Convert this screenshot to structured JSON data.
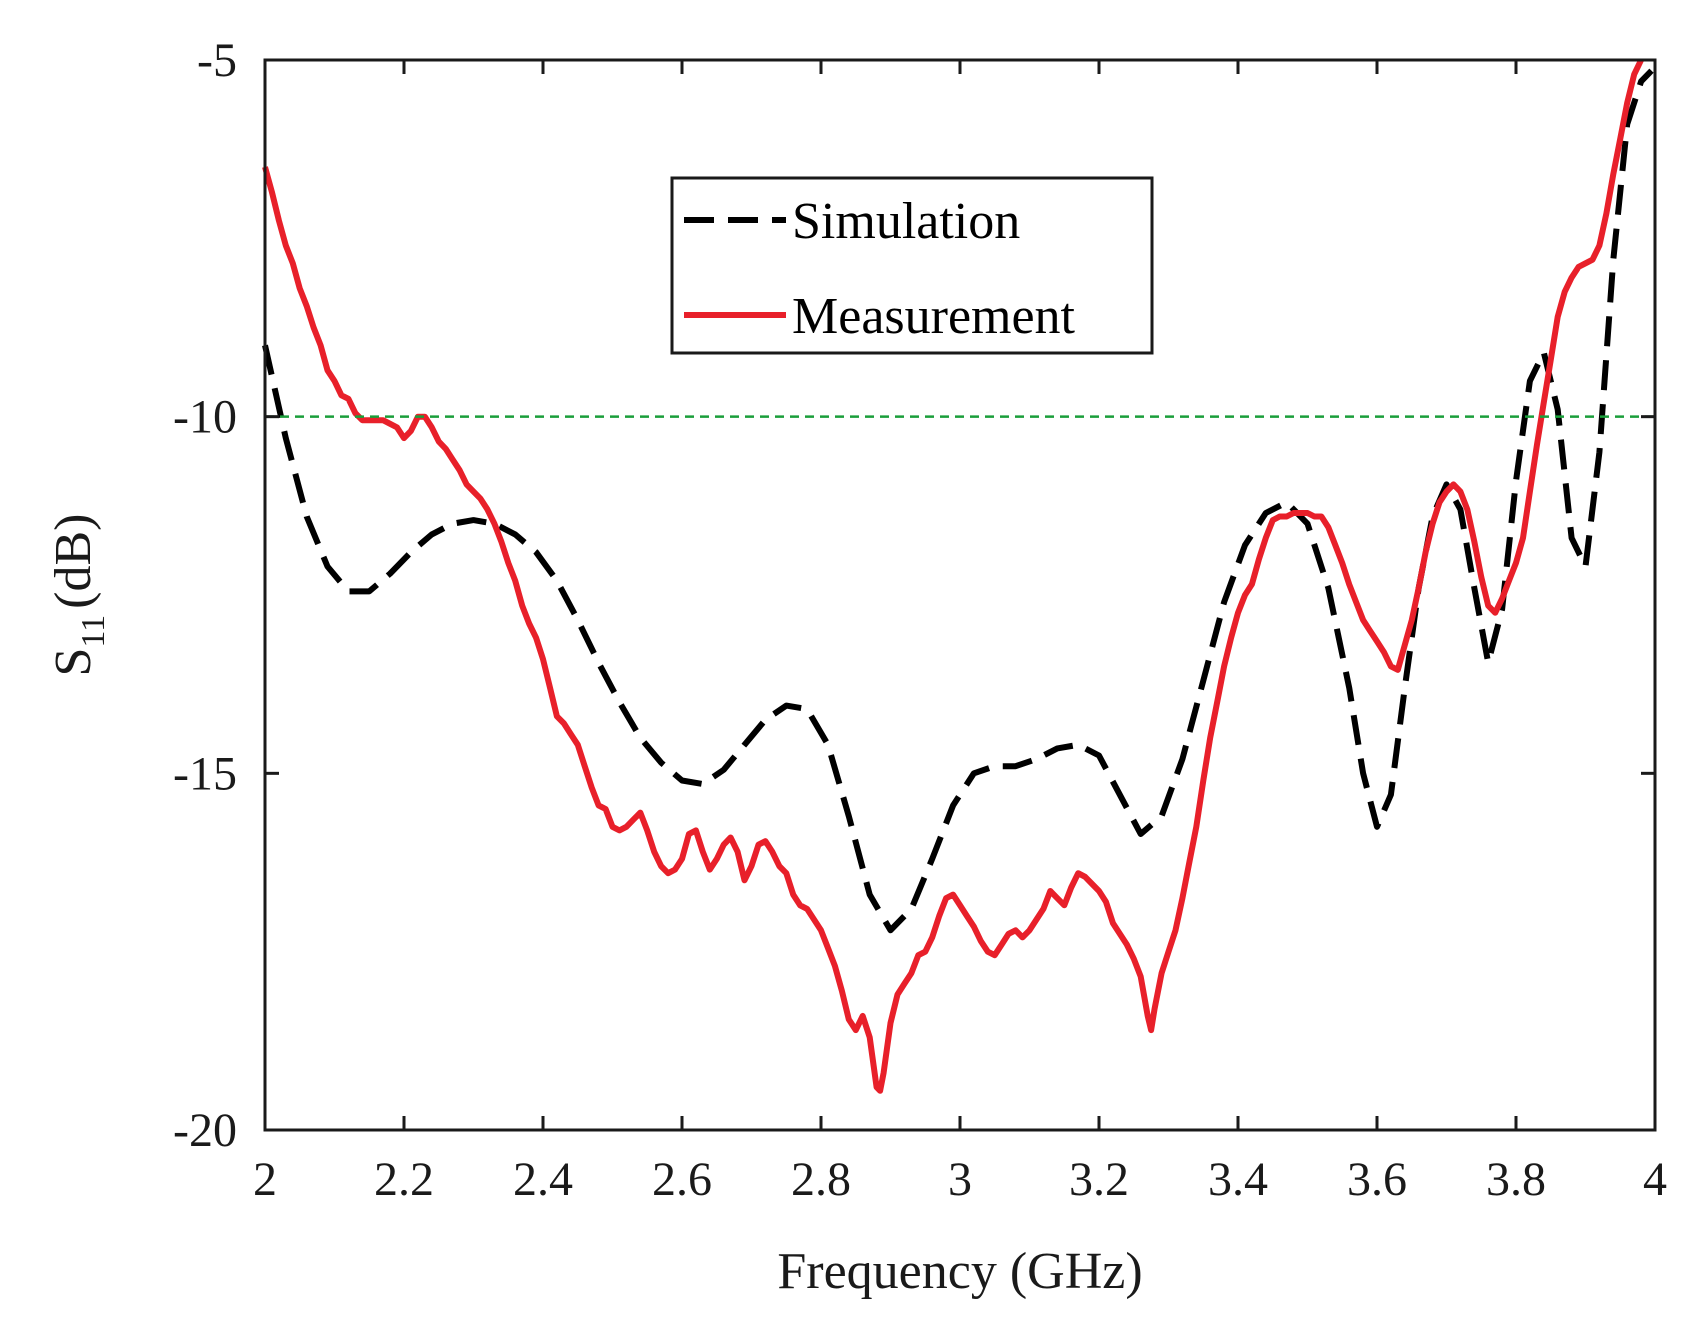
{
  "chart_data": {
    "type": "line",
    "title": "",
    "xlabel": "Frequency (GHz)",
    "ylabel": "S11 (dB)",
    "ylabel_main": "S",
    "ylabel_sub": "11",
    "ylabel_unit": "(dB)",
    "xlim": [
      2,
      4
    ],
    "ylim": [
      -20,
      -5
    ],
    "x_ticks": [
      2,
      2.2,
      2.4,
      2.6,
      2.8,
      3,
      3.2,
      3.4,
      3.6,
      3.8,
      4
    ],
    "x_tick_labels": [
      "2",
      "2.2",
      "2.4",
      "2.6",
      "2.8",
      "3",
      "3.2",
      "3.4",
      "3.6",
      "3.8",
      "4"
    ],
    "y_ticks": [
      -5,
      -10,
      -15,
      -20
    ],
    "y_tick_labels": [
      "-5",
      "-10",
      "-15",
      "-20"
    ],
    "grid": false,
    "legend_position": "top-center",
    "reference_line": {
      "y": -10,
      "color": "#1a9e3a",
      "style": "dashed"
    },
    "series": [
      {
        "name": "Simulation",
        "color": "#000000",
        "style": "dashed",
        "points": [
          [
            2.0,
            -9.0
          ],
          [
            2.03,
            -10.3
          ],
          [
            2.06,
            -11.4
          ],
          [
            2.09,
            -12.1
          ],
          [
            2.12,
            -12.45
          ],
          [
            2.15,
            -12.45
          ],
          [
            2.18,
            -12.2
          ],
          [
            2.21,
            -11.9
          ],
          [
            2.24,
            -11.65
          ],
          [
            2.27,
            -11.5
          ],
          [
            2.3,
            -11.45
          ],
          [
            2.33,
            -11.5
          ],
          [
            2.36,
            -11.65
          ],
          [
            2.39,
            -11.9
          ],
          [
            2.42,
            -12.3
          ],
          [
            2.45,
            -12.85
          ],
          [
            2.48,
            -13.45
          ],
          [
            2.51,
            -14.0
          ],
          [
            2.54,
            -14.5
          ],
          [
            2.57,
            -14.85
          ],
          [
            2.6,
            -15.1
          ],
          [
            2.63,
            -15.15
          ],
          [
            2.66,
            -14.95
          ],
          [
            2.69,
            -14.6
          ],
          [
            2.72,
            -14.25
          ],
          [
            2.75,
            -14.05
          ],
          [
            2.78,
            -14.1
          ],
          [
            2.81,
            -14.6
          ],
          [
            2.84,
            -15.6
          ],
          [
            2.87,
            -16.7
          ],
          [
            2.9,
            -17.2
          ],
          [
            2.93,
            -16.9
          ],
          [
            2.96,
            -16.2
          ],
          [
            2.99,
            -15.45
          ],
          [
            3.02,
            -15.0
          ],
          [
            3.05,
            -14.9
          ],
          [
            3.08,
            -14.9
          ],
          [
            3.11,
            -14.8
          ],
          [
            3.14,
            -14.65
          ],
          [
            3.17,
            -14.6
          ],
          [
            3.2,
            -14.75
          ],
          [
            3.23,
            -15.3
          ],
          [
            3.26,
            -15.85
          ],
          [
            3.29,
            -15.6
          ],
          [
            3.32,
            -14.8
          ],
          [
            3.35,
            -13.7
          ],
          [
            3.38,
            -12.6
          ],
          [
            3.41,
            -11.8
          ],
          [
            3.44,
            -11.35
          ],
          [
            3.47,
            -11.2
          ],
          [
            3.5,
            -11.5
          ],
          [
            3.53,
            -12.4
          ],
          [
            3.56,
            -13.8
          ],
          [
            3.58,
            -15.0
          ],
          [
            3.6,
            -15.75
          ],
          [
            3.62,
            -15.3
          ],
          [
            3.64,
            -13.8
          ],
          [
            3.66,
            -12.4
          ],
          [
            3.68,
            -11.4
          ],
          [
            3.7,
            -10.95
          ],
          [
            3.72,
            -11.3
          ],
          [
            3.74,
            -12.4
          ],
          [
            3.76,
            -13.45
          ],
          [
            3.78,
            -12.7
          ],
          [
            3.8,
            -10.9
          ],
          [
            3.82,
            -9.5
          ],
          [
            3.84,
            -9.1
          ],
          [
            3.86,
            -9.9
          ],
          [
            3.88,
            -11.7
          ],
          [
            3.9,
            -12.1
          ],
          [
            3.92,
            -10.5
          ],
          [
            3.94,
            -7.8
          ],
          [
            3.96,
            -5.9
          ],
          [
            3.98,
            -5.3
          ],
          [
            3.995,
            -5.15
          ]
        ]
      },
      {
        "name": "Measurement",
        "color": "#e8202a",
        "style": "solid",
        "points": [
          [
            2.0,
            -6.5
          ],
          [
            2.01,
            -6.85
          ],
          [
            2.02,
            -7.25
          ],
          [
            2.03,
            -7.6
          ],
          [
            2.04,
            -7.85
          ],
          [
            2.05,
            -8.2
          ],
          [
            2.06,
            -8.45
          ],
          [
            2.07,
            -8.75
          ],
          [
            2.08,
            -9.0
          ],
          [
            2.09,
            -9.35
          ],
          [
            2.1,
            -9.5
          ],
          [
            2.11,
            -9.7
          ],
          [
            2.12,
            -9.75
          ],
          [
            2.13,
            -9.95
          ],
          [
            2.14,
            -10.05
          ],
          [
            2.15,
            -10.05
          ],
          [
            2.16,
            -10.05
          ],
          [
            2.17,
            -10.05
          ],
          [
            2.18,
            -10.1
          ],
          [
            2.19,
            -10.15
          ],
          [
            2.2,
            -10.3
          ],
          [
            2.21,
            -10.2
          ],
          [
            2.22,
            -10.0
          ],
          [
            2.23,
            -10.0
          ],
          [
            2.24,
            -10.15
          ],
          [
            2.25,
            -10.35
          ],
          [
            2.26,
            -10.45
          ],
          [
            2.27,
            -10.6
          ],
          [
            2.28,
            -10.75
          ],
          [
            2.29,
            -10.95
          ],
          [
            2.3,
            -11.05
          ],
          [
            2.31,
            -11.15
          ],
          [
            2.32,
            -11.3
          ],
          [
            2.33,
            -11.5
          ],
          [
            2.34,
            -11.75
          ],
          [
            2.35,
            -12.05
          ],
          [
            2.36,
            -12.3
          ],
          [
            2.37,
            -12.65
          ],
          [
            2.38,
            -12.9
          ],
          [
            2.39,
            -13.1
          ],
          [
            2.4,
            -13.4
          ],
          [
            2.41,
            -13.8
          ],
          [
            2.42,
            -14.2
          ],
          [
            2.43,
            -14.3
          ],
          [
            2.44,
            -14.45
          ],
          [
            2.45,
            -14.6
          ],
          [
            2.46,
            -14.9
          ],
          [
            2.47,
            -15.2
          ],
          [
            2.48,
            -15.45
          ],
          [
            2.49,
            -15.5
          ],
          [
            2.5,
            -15.75
          ],
          [
            2.51,
            -15.8
          ],
          [
            2.52,
            -15.75
          ],
          [
            2.53,
            -15.65
          ],
          [
            2.54,
            -15.55
          ],
          [
            2.55,
            -15.8
          ],
          [
            2.56,
            -16.1
          ],
          [
            2.57,
            -16.3
          ],
          [
            2.58,
            -16.4
          ],
          [
            2.59,
            -16.35
          ],
          [
            2.6,
            -16.2
          ],
          [
            2.61,
            -15.85
          ],
          [
            2.62,
            -15.8
          ],
          [
            2.63,
            -16.1
          ],
          [
            2.64,
            -16.35
          ],
          [
            2.65,
            -16.2
          ],
          [
            2.66,
            -16.0
          ],
          [
            2.67,
            -15.9
          ],
          [
            2.68,
            -16.1
          ],
          [
            2.69,
            -16.5
          ],
          [
            2.7,
            -16.3
          ],
          [
            2.71,
            -16.0
          ],
          [
            2.72,
            -15.95
          ],
          [
            2.73,
            -16.1
          ],
          [
            2.74,
            -16.3
          ],
          [
            2.75,
            -16.4
          ],
          [
            2.76,
            -16.7
          ],
          [
            2.77,
            -16.85
          ],
          [
            2.78,
            -16.9
          ],
          [
            2.79,
            -17.05
          ],
          [
            2.8,
            -17.2
          ],
          [
            2.81,
            -17.45
          ],
          [
            2.82,
            -17.7
          ],
          [
            2.83,
            -18.05
          ],
          [
            2.84,
            -18.45
          ],
          [
            2.85,
            -18.6
          ],
          [
            2.86,
            -18.4
          ],
          [
            2.87,
            -18.7
          ],
          [
            2.88,
            -19.4
          ],
          [
            2.885,
            -19.45
          ],
          [
            2.89,
            -19.2
          ],
          [
            2.9,
            -18.5
          ],
          [
            2.91,
            -18.1
          ],
          [
            2.92,
            -17.95
          ],
          [
            2.93,
            -17.8
          ],
          [
            2.94,
            -17.55
          ],
          [
            2.95,
            -17.5
          ],
          [
            2.96,
            -17.3
          ],
          [
            2.97,
            -17.0
          ],
          [
            2.98,
            -16.75
          ],
          [
            2.99,
            -16.7
          ],
          [
            3.0,
            -16.85
          ],
          [
            3.01,
            -17.0
          ],
          [
            3.02,
            -17.15
          ],
          [
            3.03,
            -17.35
          ],
          [
            3.04,
            -17.5
          ],
          [
            3.05,
            -17.55
          ],
          [
            3.06,
            -17.4
          ],
          [
            3.07,
            -17.25
          ],
          [
            3.08,
            -17.2
          ],
          [
            3.09,
            -17.3
          ],
          [
            3.1,
            -17.2
          ],
          [
            3.11,
            -17.05
          ],
          [
            3.12,
            -16.9
          ],
          [
            3.13,
            -16.65
          ],
          [
            3.14,
            -16.75
          ],
          [
            3.15,
            -16.85
          ],
          [
            3.16,
            -16.6
          ],
          [
            3.17,
            -16.4
          ],
          [
            3.18,
            -16.45
          ],
          [
            3.19,
            -16.55
          ],
          [
            3.2,
            -16.65
          ],
          [
            3.21,
            -16.8
          ],
          [
            3.22,
            -17.1
          ],
          [
            3.23,
            -17.25
          ],
          [
            3.24,
            -17.4
          ],
          [
            3.25,
            -17.6
          ],
          [
            3.26,
            -17.85
          ],
          [
            3.27,
            -18.4
          ],
          [
            3.275,
            -18.6
          ],
          [
            3.28,
            -18.3
          ],
          [
            3.29,
            -17.8
          ],
          [
            3.3,
            -17.5
          ],
          [
            3.31,
            -17.2
          ],
          [
            3.32,
            -16.75
          ],
          [
            3.33,
            -16.25
          ],
          [
            3.34,
            -15.75
          ],
          [
            3.35,
            -15.1
          ],
          [
            3.36,
            -14.5
          ],
          [
            3.37,
            -14.0
          ],
          [
            3.38,
            -13.5
          ],
          [
            3.39,
            -13.1
          ],
          [
            3.4,
            -12.75
          ],
          [
            3.41,
            -12.5
          ],
          [
            3.42,
            -12.35
          ],
          [
            3.43,
            -12.0
          ],
          [
            3.44,
            -11.7
          ],
          [
            3.45,
            -11.45
          ],
          [
            3.46,
            -11.4
          ],
          [
            3.47,
            -11.4
          ],
          [
            3.48,
            -11.35
          ],
          [
            3.49,
            -11.35
          ],
          [
            3.5,
            -11.35
          ],
          [
            3.51,
            -11.4
          ],
          [
            3.52,
            -11.4
          ],
          [
            3.53,
            -11.55
          ],
          [
            3.54,
            -11.8
          ],
          [
            3.55,
            -12.05
          ],
          [
            3.56,
            -12.35
          ],
          [
            3.57,
            -12.6
          ],
          [
            3.58,
            -12.85
          ],
          [
            3.59,
            -13.0
          ],
          [
            3.6,
            -13.15
          ],
          [
            3.61,
            -13.3
          ],
          [
            3.62,
            -13.5
          ],
          [
            3.63,
            -13.55
          ],
          [
            3.64,
            -13.2
          ],
          [
            3.65,
            -12.85
          ],
          [
            3.66,
            -12.4
          ],
          [
            3.67,
            -11.9
          ],
          [
            3.68,
            -11.5
          ],
          [
            3.69,
            -11.2
          ],
          [
            3.7,
            -11.05
          ],
          [
            3.71,
            -10.95
          ],
          [
            3.72,
            -11.05
          ],
          [
            3.73,
            -11.3
          ],
          [
            3.74,
            -11.75
          ],
          [
            3.75,
            -12.25
          ],
          [
            3.76,
            -12.65
          ],
          [
            3.77,
            -12.75
          ],
          [
            3.78,
            -12.55
          ],
          [
            3.79,
            -12.3
          ],
          [
            3.8,
            -12.05
          ],
          [
            3.81,
            -11.7
          ],
          [
            3.82,
            -11.05
          ],
          [
            3.83,
            -10.4
          ],
          [
            3.84,
            -9.8
          ],
          [
            3.85,
            -9.2
          ],
          [
            3.86,
            -8.6
          ],
          [
            3.87,
            -8.25
          ],
          [
            3.88,
            -8.05
          ],
          [
            3.89,
            -7.9
          ],
          [
            3.9,
            -7.85
          ],
          [
            3.91,
            -7.8
          ],
          [
            3.92,
            -7.6
          ],
          [
            3.93,
            -7.15
          ],
          [
            3.94,
            -6.6
          ],
          [
            3.95,
            -6.1
          ],
          [
            3.96,
            -5.6
          ],
          [
            3.97,
            -5.2
          ],
          [
            3.98,
            -5.0
          ]
        ]
      }
    ]
  }
}
